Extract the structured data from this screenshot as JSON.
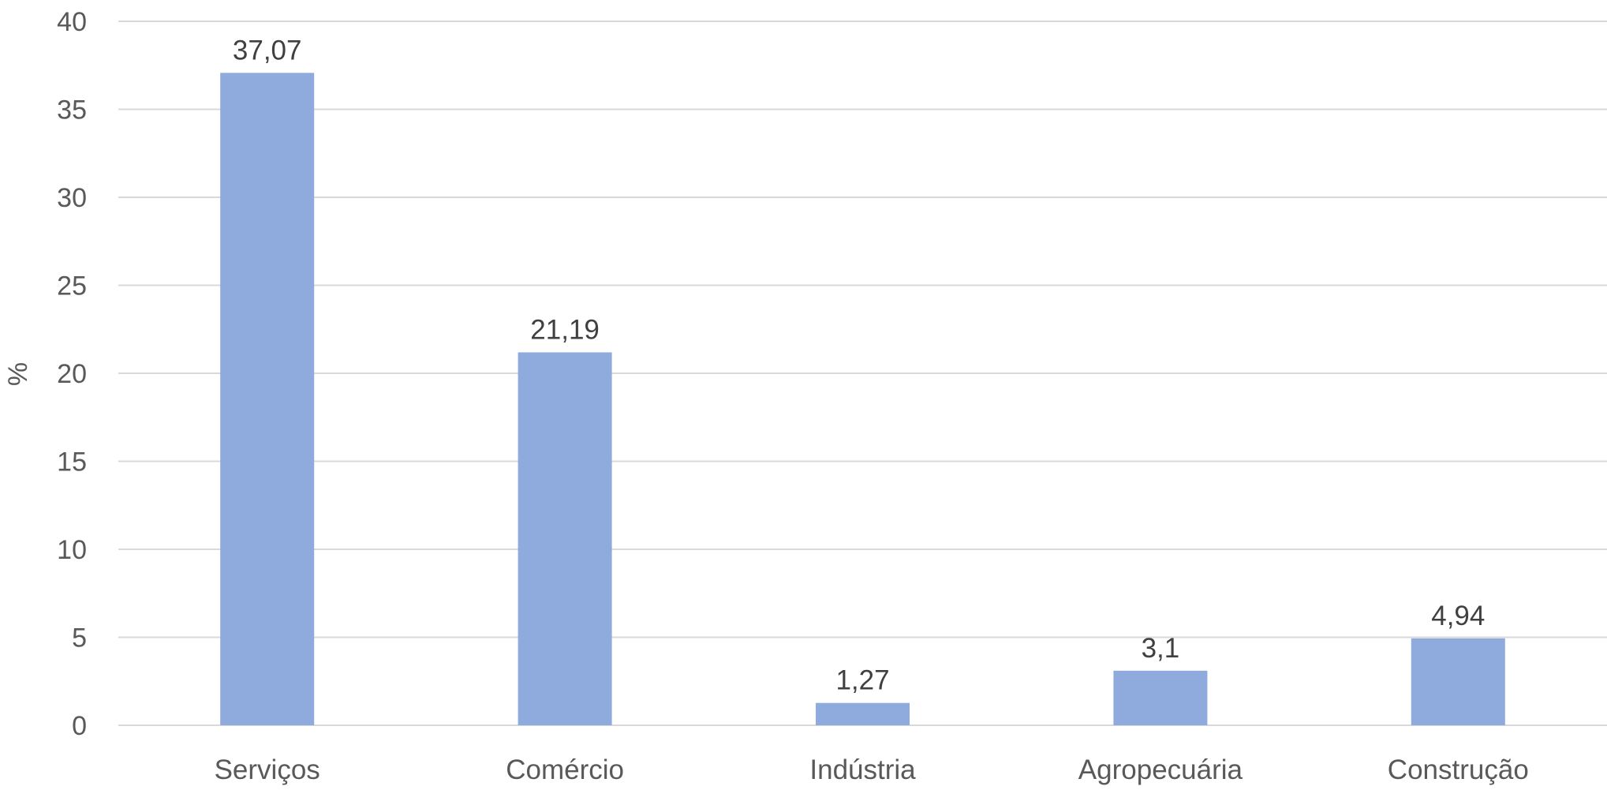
{
  "chart_data": {
    "type": "bar",
    "title": "",
    "xlabel": "",
    "ylabel": "%",
    "categories": [
      "Serviços",
      "Comércio",
      "Indústria",
      "Agropecuária",
      "Construção"
    ],
    "values": [
      37.07,
      21.19,
      1.27,
      3.1,
      4.94
    ],
    "data_labels": [
      "37,07",
      "21,19",
      "1,27",
      "3,1",
      "4,94"
    ],
    "ylim": [
      0,
      40
    ],
    "yticks": [
      0,
      5,
      10,
      15,
      20,
      25,
      30,
      35,
      40
    ],
    "grid": true,
    "legend": "none",
    "bar_color": "#8faadc"
  }
}
